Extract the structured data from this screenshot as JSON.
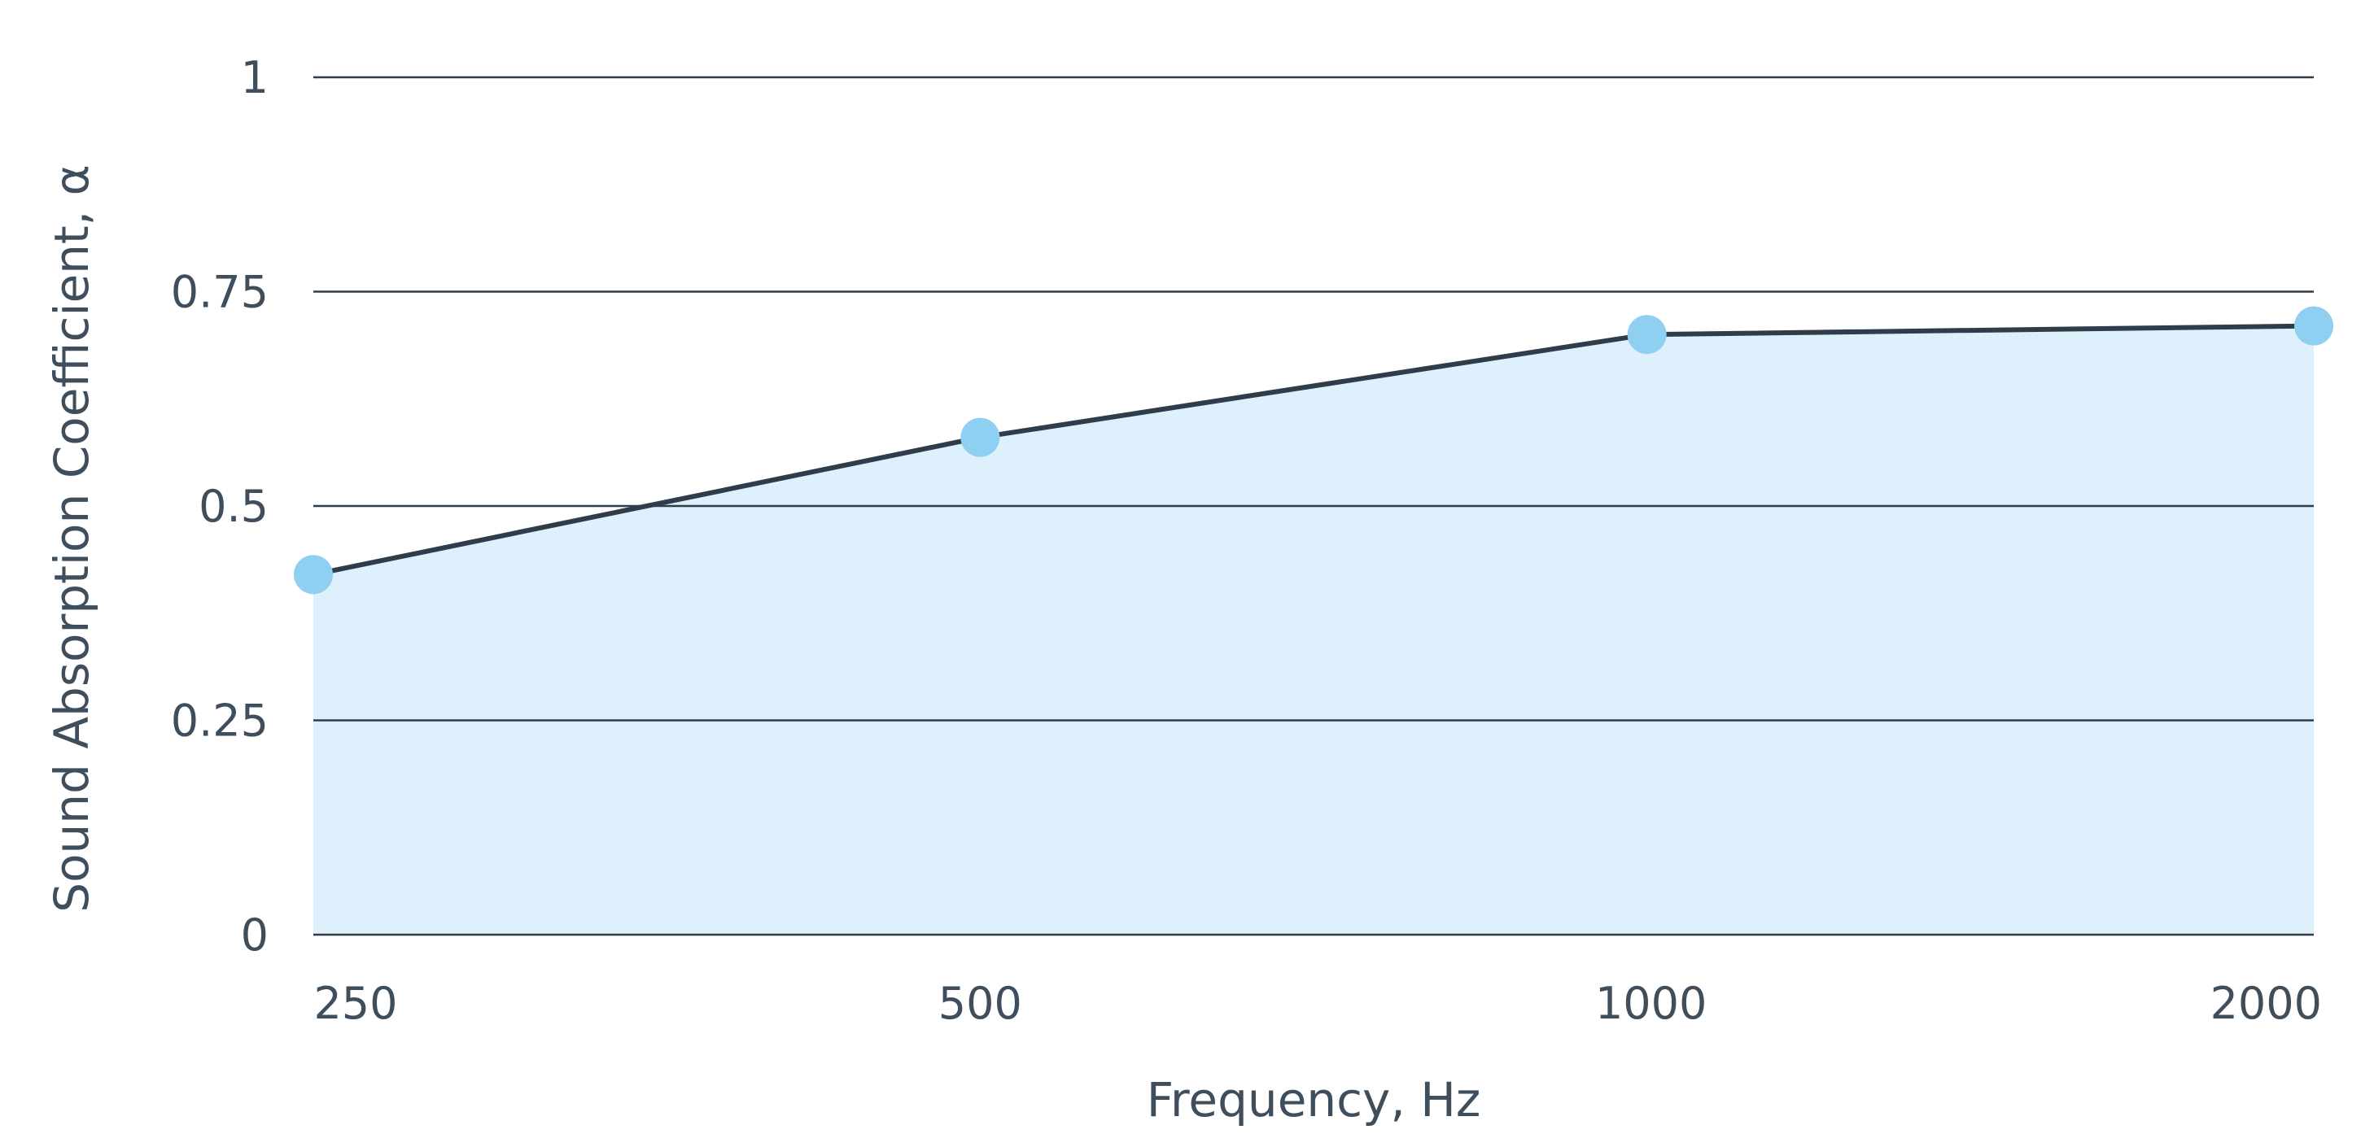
{
  "chart_data": {
    "type": "area",
    "title": "",
    "xlabel": "Frequency, Hz",
    "ylabel": "Sound Absorption Coefficient, α",
    "categories": [
      "250",
      "500",
      "1000",
      "2000"
    ],
    "series": [
      {
        "values": [
          0.42,
          0.58,
          0.7,
          0.71
        ]
      }
    ],
    "ylim": [
      0,
      1
    ],
    "yticks": [
      0,
      0.25,
      0.5,
      0.75,
      1
    ],
    "ytick_labels": [
      "0",
      "0.25",
      "0.5",
      "0.75",
      "1"
    ],
    "grid": true,
    "legend": "none",
    "colors": {
      "line": "#2f3d4b",
      "fill": "#ddf0fb",
      "marker": "#8ecff2",
      "grid": "#2f3d4b",
      "text": "#3f4e5c"
    }
  }
}
